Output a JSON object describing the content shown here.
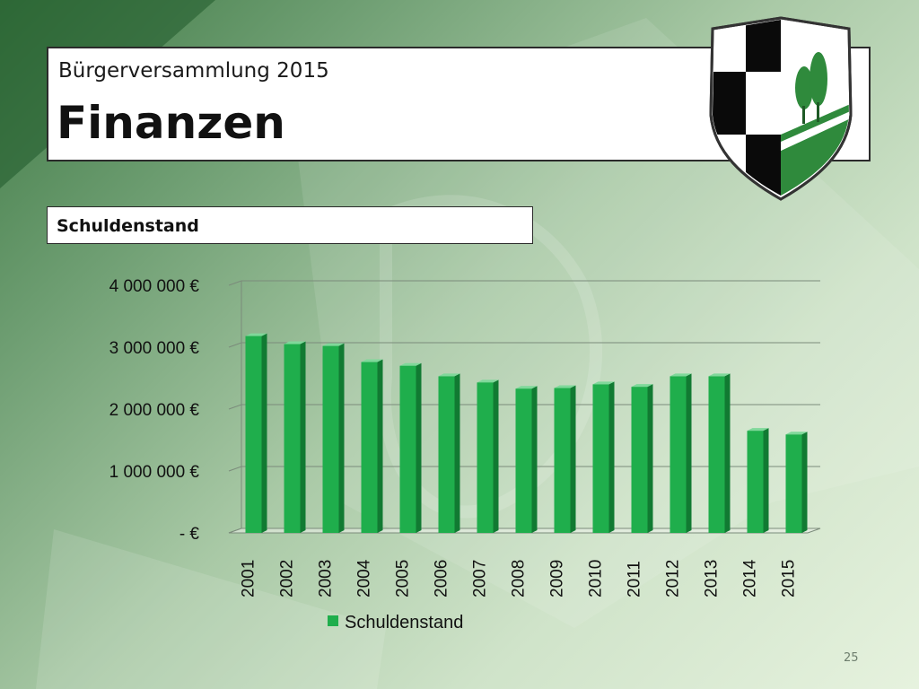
{
  "header": {
    "subtitle": "Bürgerversammlung 2015",
    "title": "Finanzen"
  },
  "section": {
    "label": "Schuldenstand"
  },
  "crest": {
    "icon": "coat-of-arms-icon",
    "colors": {
      "black": "#0a0a0a",
      "white": "#ffffff",
      "green": "#2f8a3c"
    }
  },
  "colors": {
    "bar_front": "#1fae4c",
    "bar_side": "#117a32",
    "bar_top": "#7fd89a",
    "grid": "#7b8b7b",
    "text": "#111111"
  },
  "chart_data": {
    "type": "bar",
    "categories": [
      "2001",
      "2002",
      "2003",
      "2004",
      "2005",
      "2006",
      "2007",
      "2008",
      "2009",
      "2010",
      "2011",
      "2012",
      "2013",
      "2014",
      "2015"
    ],
    "series": [
      {
        "name": "Schuldenstand",
        "values": [
          3180000,
          3050000,
          3020000,
          2760000,
          2700000,
          2530000,
          2430000,
          2330000,
          2340000,
          2400000,
          2360000,
          2530000,
          2530000,
          1650000,
          1590000
        ]
      }
    ],
    "yticks": [
      "- €",
      "1 000 000 €",
      "2 000 000 €",
      "3 000 000 €",
      "4 000 000 €"
    ],
    "ylim": [
      0,
      4000000
    ],
    "grid": true,
    "legend_position": "bottom"
  },
  "footer": {
    "page_number": "25"
  }
}
